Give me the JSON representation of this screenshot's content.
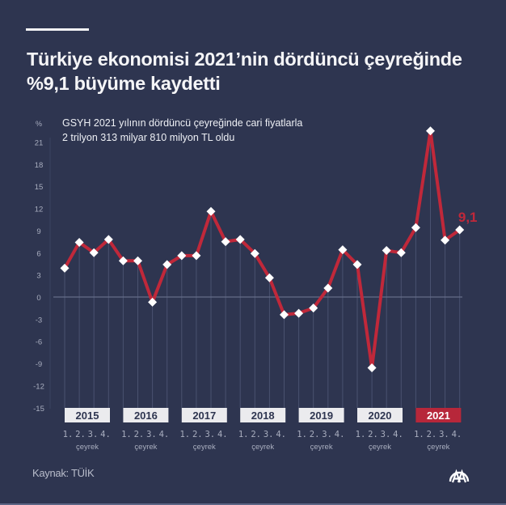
{
  "header": {
    "title_line1": "Türkiye ekonomisi 2021’nin dördüncü çeyreğinde",
    "title_line2": "%9,1 büyüme kaydetti"
  },
  "subtitle": {
    "line1": "GSYH 2021 yılının dördüncü çeyreğinde cari fiyatlarla",
    "line2": "2 trilyon 313 milyar 810 milyon TL oldu"
  },
  "footer": {
    "source": "Kaynak: TÜİK",
    "logo": "aa-logo-icon"
  },
  "colors": {
    "background": "#2e3550",
    "line": "#c0283a",
    "marker": "#ffffff",
    "highlight_year_box": "#b7273a",
    "year_box": "#ebebee",
    "axis_text": "#a9aebf",
    "gridline": "#4a5270"
  },
  "chart_data": {
    "type": "line",
    "title": "Türkiye ekonomisi 2021’nin dördüncü çeyreğinde %9,1 büyüme kaydetti",
    "subtitle": "GSYH 2021 yılının dördüncü çeyreğinde cari fiyatlarla 2 trilyon 313 milyar 810 milyon TL oldu",
    "ylabel": "%",
    "xlabel": "çeyrek",
    "ylim": [
      -15,
      21
    ],
    "yticks": [
      21,
      18,
      15,
      12,
      9,
      6,
      3,
      0,
      -3,
      -6,
      -9,
      -12,
      -15
    ],
    "years": [
      "2015",
      "2016",
      "2017",
      "2018",
      "2019",
      "2020",
      "2021"
    ],
    "highlight_year": "2021",
    "quarter_labels": [
      "1.",
      "2.",
      "3.",
      "4."
    ],
    "categories": [
      "2015 Q1",
      "2015 Q2",
      "2015 Q3",
      "2015 Q4",
      "2016 Q1",
      "2016 Q2",
      "2016 Q3",
      "2016 Q4",
      "2017 Q1",
      "2017 Q2",
      "2017 Q3",
      "2017 Q4",
      "2018 Q1",
      "2018 Q2",
      "2018 Q3",
      "2018 Q4",
      "2019 Q1",
      "2019 Q2",
      "2019 Q3",
      "2019 Q4",
      "2020 Q1",
      "2020 Q2",
      "2020 Q3",
      "2020 Q4",
      "2021 Q1",
      "2021 Q2",
      "2021 Q3",
      "2021 Q4"
    ],
    "series": [
      {
        "name": "GSYH büyüme (%)",
        "values": [
          3.9,
          7.4,
          6.0,
          7.8,
          4.9,
          4.9,
          -0.7,
          4.4,
          5.6,
          5.6,
          11.6,
          7.5,
          7.8,
          5.9,
          2.6,
          -2.4,
          -2.2,
          -1.5,
          1.2,
          6.4,
          4.4,
          -9.6,
          6.3,
          6.0,
          9.4,
          22.5,
          7.7,
          9.1
        ]
      }
    ],
    "annotations": [
      {
        "index": 27,
        "label": "9,1"
      }
    ],
    "grid": {
      "horizontal_zero_line": true,
      "vertical_lines": true
    },
    "legend": null
  }
}
